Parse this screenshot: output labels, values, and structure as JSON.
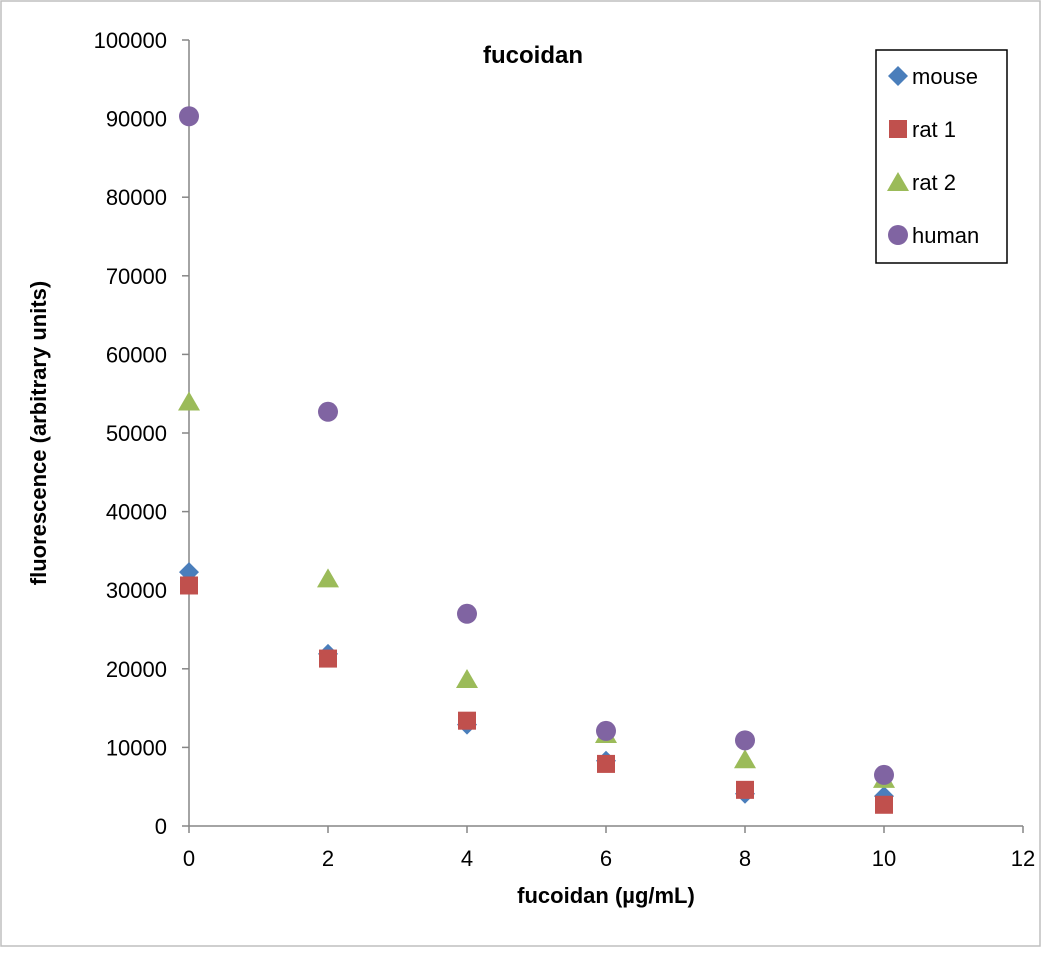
{
  "chart_data": {
    "type": "scatter",
    "title": "fucoidan",
    "xlabel": "fucoidan (µg/mL)",
    "ylabel": "fluorescence (arbitrary units)",
    "xlim": [
      0,
      12
    ],
    "ylim": [
      0,
      100000
    ],
    "x_ticks": [
      "0",
      "2",
      "4",
      "6",
      "8",
      "10",
      "12"
    ],
    "y_ticks": [
      "0",
      "10000",
      "20000",
      "30000",
      "40000",
      "50000",
      "60000",
      "70000",
      "80000",
      "90000",
      "100000"
    ],
    "grid": false,
    "legend_position": "top-right",
    "series": [
      {
        "name": "mouse",
        "marker": "diamond",
        "color": "#4a7ebb",
        "x": [
          0,
          2,
          4,
          6,
          8,
          10
        ],
        "y": [
          32300,
          21900,
          12900,
          8300,
          4100,
          3800
        ]
      },
      {
        "name": "rat 1",
        "marker": "square",
        "color": "#c0504d",
        "x": [
          0,
          2,
          4,
          6,
          8,
          10
        ],
        "y": [
          30600,
          21300,
          13400,
          7900,
          4600,
          2700
        ]
      },
      {
        "name": "rat 2",
        "marker": "triangle",
        "color": "#9bbb59",
        "x": [
          0,
          2,
          4,
          6,
          8,
          10
        ],
        "y": [
          54000,
          31500,
          18700,
          11700,
          8500,
          6000
        ]
      },
      {
        "name": "human",
        "marker": "circle",
        "color": "#8064a2",
        "x": [
          0,
          2,
          4,
          6,
          8,
          10
        ],
        "y": [
          90300,
          52700,
          27000,
          12100,
          10900,
          6500
        ]
      }
    ]
  }
}
